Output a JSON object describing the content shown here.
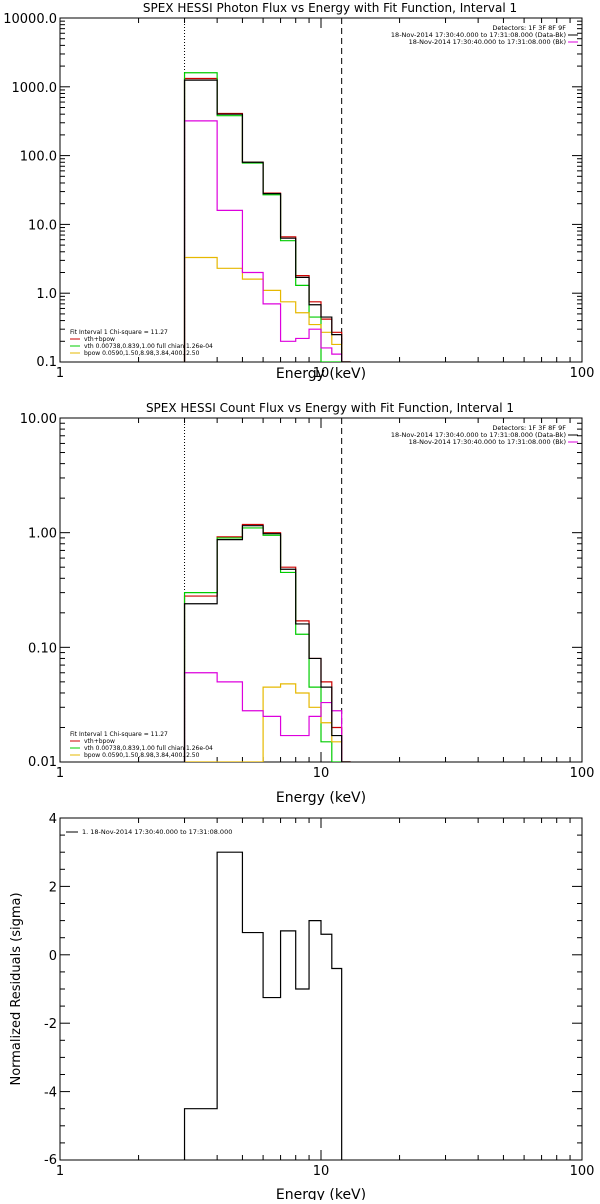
{
  "colors": {
    "axis": "#000000",
    "total": "#000000",
    "fit_sum": "#cc0000",
    "vth": "#00cc00",
    "bpow": "#e6b800",
    "background": "#dd00dd"
  },
  "chart_data": [
    {
      "type": "line",
      "title": "SPEX HESSI Photon Flux vs Energy with Fit Function, Interval 1",
      "xlabel": "Energy (keV)",
      "ylabel": "",
      "xscale": "log",
      "yscale": "log",
      "xlim": [
        1,
        100
      ],
      "ylim": [
        0.1,
        10000
      ],
      "x_ticks": [
        "1",
        "10",
        "100"
      ],
      "y_ticks": [
        "0.1",
        "1.0",
        "10.0",
        "100.0",
        "1000.0",
        "10000.0"
      ],
      "vlines": [
        {
          "x": 3.0,
          "style": "dotted"
        },
        {
          "x": 12.0,
          "style": "dashed"
        }
      ],
      "legend_top": [
        "Detectors: 1F 3F 8F 9F",
        "18-Nov-2014 17:30:40.000 to 17:31:08.000 (Data-Bk)",
        "18-Nov-2014 17:30:40.000 to 17:31:08.000 (Bk)"
      ],
      "legend_bottom": [
        "Fit Interval 1    Chi-square = 11.27",
        "vth+bpow",
        "vth 0.00738,0.839,1.00   full chian 1.26e-04",
        "bpow 0.0590,1.50,8.98,3.84,400.,2.50"
      ],
      "bin_edges": [
        3.0,
        4.0,
        5.0,
        6.0,
        7.0,
        8.0,
        9.0,
        10.0,
        11.0,
        12.0,
        13.0
      ],
      "series": [
        {
          "name": "vth+bpow",
          "role": "fit_sum",
          "values": [
            1320,
            410,
            80,
            28.5,
            6.6,
            1.8,
            0.75,
            0.42,
            0.27,
            0.1
          ]
        },
        {
          "name": "vth",
          "role": "vth",
          "values": [
            1600,
            380,
            78,
            27,
            5.8,
            1.3,
            0.45,
            0.1,
            0.08,
            0.06
          ]
        },
        {
          "name": "bpow",
          "role": "bpow",
          "values": [
            3.3,
            2.3,
            1.6,
            1.1,
            0.75,
            0.52,
            0.35,
            0.27,
            0.18,
            0.1
          ]
        },
        {
          "name": "Data-Bk",
          "role": "total",
          "values": [
            1250,
            400,
            80,
            28,
            6.3,
            1.7,
            0.68,
            0.45,
            0.25,
            0.1
          ]
        },
        {
          "name": "Bk",
          "role": "background",
          "values": [
            320,
            16,
            2.0,
            0.7,
            0.2,
            0.22,
            0.3,
            0.16,
            0.13,
            0.1
          ]
        }
      ]
    },
    {
      "type": "line",
      "title": "SPEX HESSI Count Flux vs Energy with Fit Function, Interval 1",
      "xlabel": "Energy (keV)",
      "ylabel": "",
      "xscale": "log",
      "yscale": "log",
      "xlim": [
        1,
        100
      ],
      "ylim": [
        0.01,
        10
      ],
      "x_ticks": [
        "1",
        "10",
        "100"
      ],
      "y_ticks": [
        "0.01",
        "0.10",
        "1.00",
        "10.00"
      ],
      "vlines": [
        {
          "x": 3.0,
          "style": "dotted"
        },
        {
          "x": 12.0,
          "style": "dashed"
        }
      ],
      "legend_top": [
        "Detectors: 1F 3F 8F 9F",
        "18-Nov-2014 17:30:40.000 to 17:31:08.000 (Data-Bk)",
        "18-Nov-2014 17:30:40.000 to 17:31:08.000 (Bk)"
      ],
      "legend_bottom": [
        "Fit Interval 1    Chi-square = 11.27",
        "vth+bpow",
        "vth 0.00738,0.839,1.00   full chian 1.26e-04",
        "bpow 0.0590,1.50,8.98,3.84,400.,2.50"
      ],
      "bin_edges": [
        3.0,
        4.0,
        5.0,
        6.0,
        7.0,
        8.0,
        9.0,
        10.0,
        11.0,
        12.0,
        13.0
      ],
      "series": [
        {
          "name": "vth+bpow",
          "role": "fit_sum",
          "values": [
            0.28,
            0.92,
            1.18,
            1.0,
            0.5,
            0.17,
            0.08,
            0.05,
            0.02,
            0.01
          ]
        },
        {
          "name": "vth",
          "role": "vth",
          "values": [
            0.3,
            0.9,
            1.1,
            0.95,
            0.45,
            0.13,
            0.045,
            0.015,
            0.01,
            0.01
          ]
        },
        {
          "name": "bpow",
          "role": "bpow",
          "values": [
            0.01,
            0.01,
            0.01,
            0.045,
            0.048,
            0.04,
            0.03,
            0.022,
            0.015,
            0.01
          ]
        },
        {
          "name": "Data-Bk",
          "role": "total",
          "values": [
            0.24,
            0.87,
            1.15,
            0.98,
            0.48,
            0.16,
            0.08,
            0.045,
            0.017,
            0.01
          ]
        },
        {
          "name": "Bk",
          "role": "background",
          "values": [
            0.06,
            0.05,
            0.028,
            0.025,
            0.017,
            0.017,
            0.025,
            0.033,
            0.028,
            0.01
          ]
        }
      ]
    },
    {
      "type": "line",
      "title": "",
      "xlabel": "Energy (keV)",
      "ylabel": "Normalized Residuals (sigma)",
      "xscale": "log",
      "yscale": "linear",
      "xlim": [
        1,
        100
      ],
      "ylim": [
        -6,
        4
      ],
      "x_ticks": [
        "1",
        "10",
        "100"
      ],
      "y_ticks": [
        "-6",
        "-4",
        "-2",
        "0",
        "2",
        "4"
      ],
      "legend": [
        "1. 18-Nov-2014 17:30:40.000 to 17:31:08.000"
      ],
      "bin_edges": [
        3.0,
        4.0,
        5.0,
        6.0,
        7.0,
        8.0,
        9.0,
        10.0,
        11.0,
        12.0
      ],
      "series": [
        {
          "name": "1. 18-Nov-2014 17:30:40.000 to 17:31:08.000",
          "role": "total",
          "values": [
            -4.5,
            3.0,
            0.65,
            -1.25,
            0.7,
            -1.0,
            1.0,
            0.6,
            -0.4
          ]
        }
      ]
    }
  ]
}
